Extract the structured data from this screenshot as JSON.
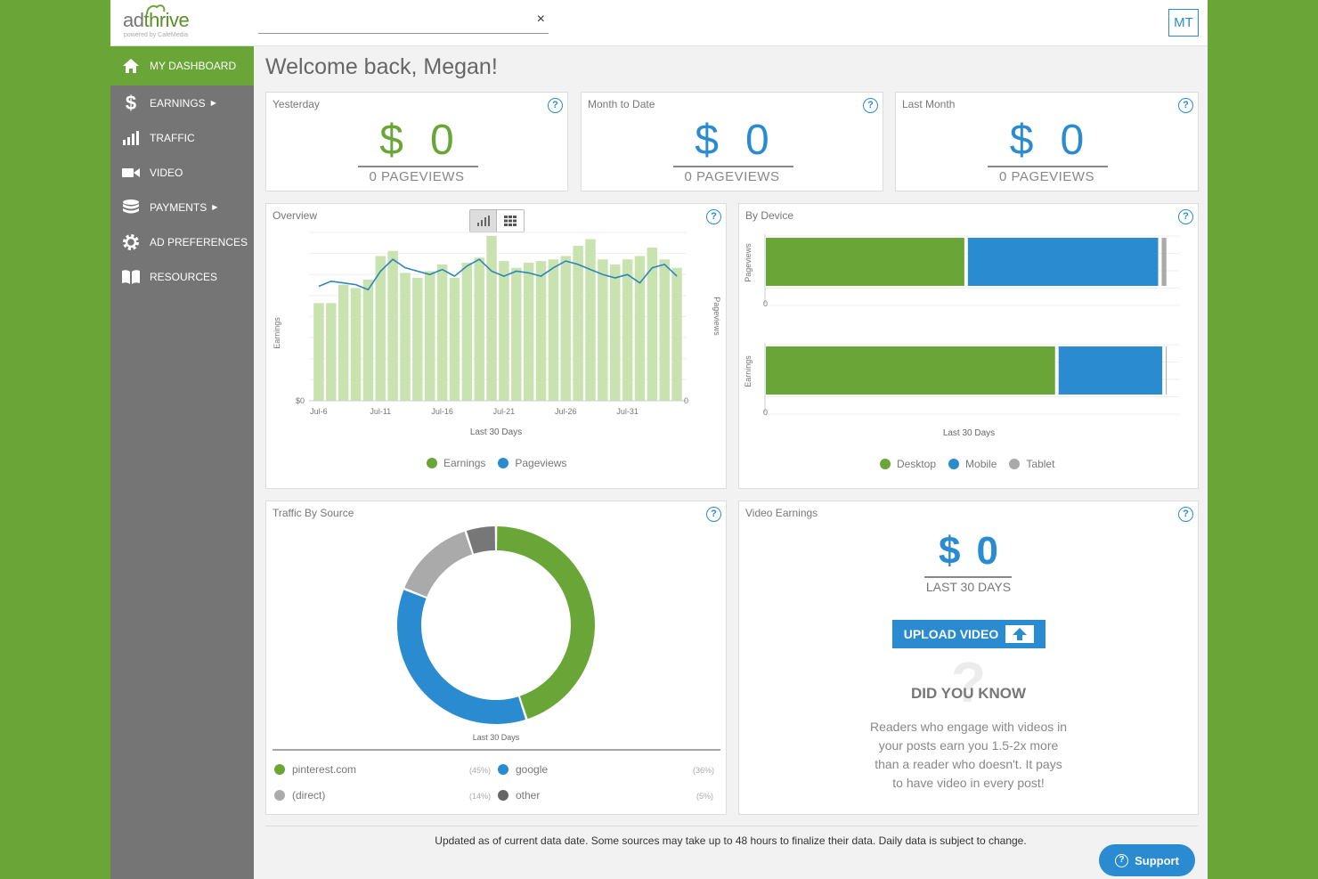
{
  "brand": {
    "logo_main": "ad",
    "logo_accent": "thrive",
    "logo_sub": "powered by CafeMedia"
  },
  "search": {
    "value": "",
    "placeholder": "",
    "clear_label": "×"
  },
  "user": {
    "initials": "MT"
  },
  "colors": {
    "green": "#6aa637",
    "blue": "#2a8bd0",
    "gray": "#aaaaaa",
    "dark_gray": "#777777",
    "bar_light_green": "#c8e3b0"
  },
  "sidebar": {
    "items": [
      {
        "label": "MY DASHBOARD",
        "icon": "home-icon",
        "caret": ""
      },
      {
        "label": "EARNINGS",
        "icon": "dollar-icon",
        "caret": "▶"
      },
      {
        "label": "TRAFFIC",
        "icon": "bar-chart-icon",
        "caret": ""
      },
      {
        "label": "VIDEO",
        "icon": "video-camera-icon",
        "caret": ""
      },
      {
        "label": "PAYMENTS",
        "icon": "coins-stack-icon",
        "caret": "▶"
      },
      {
        "label": "AD PREFERENCES",
        "icon": "gear-icon",
        "caret": ""
      },
      {
        "label": "RESOURCES",
        "icon": "book-icon",
        "caret": ""
      }
    ]
  },
  "welcome": "Welcome back, Megan!",
  "stats": [
    {
      "title": "Yesterday",
      "currency": "$",
      "value": "0",
      "pageviews": "0  PAGEVIEWS",
      "color": "#6aa637"
    },
    {
      "title": "Month to Date",
      "currency": "$",
      "value": "0",
      "pageviews": "0  PAGEVIEWS",
      "color": "#2a8bd0"
    },
    {
      "title": "Last Month",
      "currency": "$",
      "value": "0",
      "pageviews": "0  PAGEVIEWS",
      "color": "#2a8bd0"
    }
  ],
  "help_label": "?",
  "overview": {
    "title": "Overview",
    "chart_data": {
      "type": "bar",
      "title": "Overview",
      "xlabel": "Last 30 Days",
      "ylabel": "Earnings",
      "y2label": "Pageviews",
      "y_tick": "$0",
      "y2_tick": "0",
      "x_ticks": [
        "Jul-6",
        "Jul-11",
        "Jul-16",
        "Jul-21",
        "Jul-26",
        "Jul-31"
      ],
      "series": [
        {
          "name": "Pageviews",
          "kind": "bar",
          "values": [
            58,
            58,
            69,
            67,
            72,
            86,
            89,
            76,
            73,
            77,
            81,
            73,
            82,
            85,
            98,
            83,
            79,
            82,
            83,
            84,
            86,
            92,
            96,
            84,
            81,
            84,
            86,
            91,
            84,
            79
          ]
        },
        {
          "name": "Earnings",
          "kind": "line",
          "values": [
            68,
            71,
            70,
            69,
            66,
            77,
            84,
            79,
            77,
            75,
            78,
            74,
            80,
            84,
            77,
            74,
            77,
            76,
            74,
            79,
            83,
            81,
            78,
            75,
            73,
            75,
            70,
            79,
            81,
            74
          ]
        }
      ]
    },
    "legend": [
      "Earnings",
      "Pageviews"
    ]
  },
  "by_device": {
    "title": "By Device",
    "chart_data": {
      "type": "bar",
      "orientation": "horizontal-stacked",
      "xlabel": "Last 30 Days",
      "x_tick": "0",
      "categories": [
        "Pageviews",
        "Earnings"
      ],
      "series": [
        {
          "name": "Desktop",
          "values": [
            49,
            71
          ]
        },
        {
          "name": "Mobile",
          "values": [
            47,
            26
          ]
        },
        {
          "name": "Tablet",
          "values": [
            2,
            1
          ]
        }
      ]
    },
    "legend": [
      "Desktop",
      "Mobile",
      "Tablet"
    ]
  },
  "traffic_source": {
    "title": "Traffic By Source",
    "chart_data": {
      "type": "pie",
      "donut": true,
      "xlabel": "Last 30 Days",
      "slices": [
        {
          "name": "pinterest.com",
          "value": 45,
          "label": "(45%)"
        },
        {
          "name": "google",
          "value": 36,
          "label": "(36%)"
        },
        {
          "name": "(direct)",
          "value": 14,
          "label": "(14%)"
        },
        {
          "name": "other",
          "value": 5,
          "label": "(5%)"
        }
      ]
    }
  },
  "video": {
    "title": "Video Earnings",
    "currency": "$",
    "value": "0",
    "period": "LAST 30 DAYS",
    "upload_label": "UPLOAD VIDEO",
    "did_you_know": "DID YOU KNOW",
    "tip_lines": [
      "Readers who engage with videos in",
      "your posts earn you 1.5-2x more",
      "than a reader who doesn't. It pays",
      "to have video in every post!"
    ]
  },
  "footer": "Updated as of current data date. Some sources may take up to 48 hours to finalize their data. Daily data is subject to change.",
  "support_label": "Support"
}
